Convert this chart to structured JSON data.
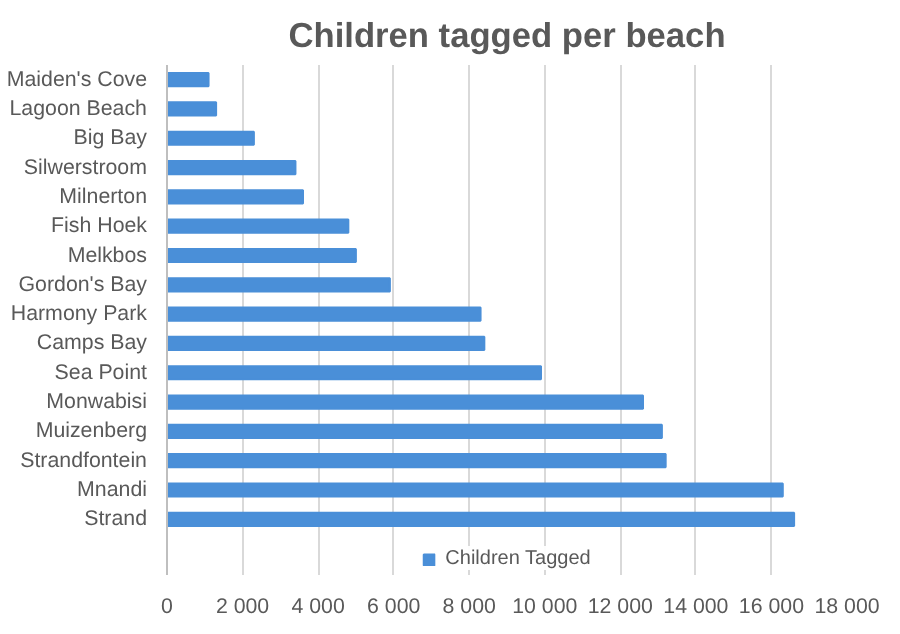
{
  "chart_data": {
    "type": "bar",
    "orientation": "horizontal",
    "title": "Children tagged per beach",
    "categories": [
      "Maiden's Cove",
      "Lagoon Beach",
      "Big Bay",
      "Silwerstroom",
      "Milnerton",
      "Fish Hoek",
      "Melkbos",
      "Gordon's Bay",
      "Harmony Park",
      "Camps Bay",
      "Sea Point",
      "Monwabisi",
      "Muizenberg",
      "Strandfontein",
      "Mnandi",
      "Strand"
    ],
    "series": [
      {
        "name": "Children Tagged",
        "color": "#4a8fd8",
        "values": [
          1100,
          1300,
          2300,
          3400,
          3600,
          4800,
          5000,
          5900,
          8300,
          8400,
          9900,
          12600,
          13100,
          13200,
          16300,
          16600
        ]
      }
    ],
    "xlim": [
      0,
      18000
    ],
    "xticks": [
      0,
      {
        "value": 2000,
        "label": "2 000"
      },
      {
        "value": 4000,
        "label": "4 000"
      },
      {
        "value": 6000,
        "label": "6 000"
      },
      {
        "value": 8000,
        "label": "8 000"
      },
      {
        "value": 10000,
        "label": "10 000"
      },
      {
        "value": 12000,
        "label": "12 000"
      },
      {
        "value": 14000,
        "label": "14 000"
      },
      {
        "value": 16000,
        "label": "16 000"
      },
      {
        "value": 18000,
        "label": "18 000"
      }
    ],
    "grid": "x",
    "legend": "bottom"
  }
}
